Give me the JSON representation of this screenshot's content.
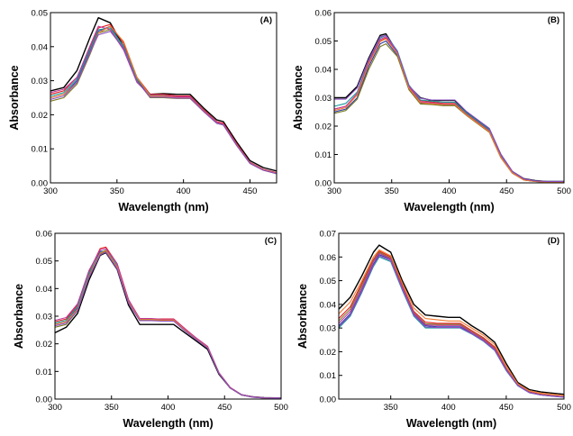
{
  "figure": {
    "palette": [
      "#000000",
      "#e41a1c",
      "#2b3da8",
      "#1c9c9c",
      "#7a7a22",
      "#c2379c",
      "#f07a2e",
      "#8a4fc0",
      "#9ac840",
      "#3d8c3d"
    ]
  },
  "chart_data": [
    {
      "type": "line",
      "panel_label": "(A)",
      "xlabel": "Wavelength (nm)",
      "ylabel": "Absorbance",
      "xlim": [
        300,
        470
      ],
      "ylim": [
        0,
        0.05
      ],
      "xticks": [
        "300",
        "350",
        "400",
        "450"
      ],
      "yticks": [
        "0.00",
        "0.01",
        "0.02",
        "0.03",
        "0.04",
        "0.05"
      ],
      "x": [
        300,
        310,
        320,
        330,
        336,
        345,
        355,
        365,
        375,
        385,
        395,
        405,
        415,
        425,
        430,
        440,
        450,
        460,
        470
      ],
      "series": [
        {
          "values": [
            0.027,
            0.028,
            0.033,
            0.043,
            0.0485,
            0.047,
            0.04,
            0.03,
            0.026,
            0.0262,
            0.026,
            0.026,
            0.022,
            0.0185,
            0.018,
            0.012,
            0.0065,
            0.0045,
            0.0035
          ]
        },
        {
          "values": [
            0.026,
            0.027,
            0.031,
            0.04,
            0.0455,
            0.0465,
            0.041,
            0.031,
            0.026,
            0.026,
            0.0255,
            0.0255,
            0.0215,
            0.018,
            0.0175,
            0.0115,
            0.006,
            0.004,
            0.003
          ]
        },
        {
          "values": [
            0.025,
            0.026,
            0.03,
            0.039,
            0.0445,
            0.046,
            0.04,
            0.03,
            0.0255,
            0.0255,
            0.025,
            0.025,
            0.021,
            0.0175,
            0.017,
            0.011,
            0.0058,
            0.0038,
            0.0028
          ]
        },
        {
          "values": [
            0.0255,
            0.0265,
            0.0305,
            0.0395,
            0.045,
            0.0455,
            0.04,
            0.0305,
            0.0258,
            0.0258,
            0.0252,
            0.0252,
            0.0212,
            0.0178,
            0.0172,
            0.0112,
            0.0059,
            0.0039,
            0.0029
          ]
        },
        {
          "values": [
            0.024,
            0.025,
            0.029,
            0.038,
            0.044,
            0.045,
            0.0395,
            0.03,
            0.025,
            0.025,
            0.0248,
            0.0248,
            0.021,
            0.0175,
            0.017,
            0.011,
            0.0057,
            0.0037,
            0.0027
          ]
        },
        {
          "values": [
            0.0265,
            0.0275,
            0.031,
            0.0405,
            0.046,
            0.045,
            0.039,
            0.0295,
            0.0257,
            0.0257,
            0.0253,
            0.0253,
            0.0213,
            0.0178,
            0.0173,
            0.0113,
            0.0059,
            0.0039,
            0.0029
          ]
        },
        {
          "values": [
            0.025,
            0.026,
            0.0295,
            0.0385,
            0.044,
            0.046,
            0.0415,
            0.031,
            0.0255,
            0.0255,
            0.025,
            0.025,
            0.0211,
            0.0176,
            0.0171,
            0.0111,
            0.0058,
            0.0038,
            0.0028
          ]
        },
        {
          "values": [
            0.0245,
            0.0255,
            0.0295,
            0.0385,
            0.0435,
            0.0445,
            0.0395,
            0.0298,
            0.0252,
            0.0252,
            0.0249,
            0.0249,
            0.021,
            0.0175,
            0.017,
            0.011,
            0.0057,
            0.0037,
            0.0027
          ]
        }
      ]
    },
    {
      "type": "line",
      "panel_label": "(B)",
      "xlabel": "Wavelength (nm)",
      "ylabel": "Absorbance",
      "xlim": [
        300,
        500
      ],
      "ylim": [
        0,
        0.06
      ],
      "xticks": [
        "300",
        "350",
        "400",
        "450",
        "500"
      ],
      "yticks": [
        "0.00",
        "0.01",
        "0.02",
        "0.03",
        "0.04",
        "0.05",
        "0.06"
      ],
      "x": [
        300,
        310,
        320,
        330,
        340,
        345,
        355,
        365,
        375,
        385,
        395,
        405,
        415,
        425,
        435,
        445,
        455,
        465,
        475,
        485,
        500
      ],
      "series": [
        {
          "values": [
            0.03,
            0.03,
            0.034,
            0.044,
            0.052,
            0.0525,
            0.046,
            0.034,
            0.03,
            0.029,
            0.029,
            0.029,
            0.025,
            0.022,
            0.019,
            0.01,
            0.004,
            0.0015,
            0.0008,
            0.0005,
            0.0005
          ]
        },
        {
          "values": [
            0.026,
            0.027,
            0.031,
            0.042,
            0.05,
            0.051,
            0.046,
            0.034,
            0.029,
            0.0285,
            0.028,
            0.028,
            0.0245,
            0.0215,
            0.0185,
            0.0095,
            0.0038,
            0.0012,
            0.0006,
            0.0004,
            0.0004
          ]
        },
        {
          "values": [
            0.025,
            0.026,
            0.03,
            0.041,
            0.049,
            0.05,
            0.045,
            0.033,
            0.028,
            0.028,
            0.0275,
            0.0275,
            0.024,
            0.021,
            0.018,
            0.009,
            0.0035,
            0.001,
            0.0005,
            0.0003,
            0.0003
          ]
        },
        {
          "values": [
            0.027,
            0.028,
            0.032,
            0.043,
            0.051,
            0.052,
            0.0465,
            0.0345,
            0.0292,
            0.0288,
            0.0284,
            0.0284,
            0.0247,
            0.0217,
            0.0187,
            0.0096,
            0.0039,
            0.0013,
            0.0007,
            0.0005,
            0.0005
          ]
        },
        {
          "values": [
            0.0245,
            0.0255,
            0.0295,
            0.04,
            0.048,
            0.049,
            0.0445,
            0.0328,
            0.0278,
            0.0276,
            0.0272,
            0.0272,
            0.0238,
            0.0208,
            0.0178,
            0.0089,
            0.0034,
            0.001,
            0.0005,
            0.0003,
            0.0003
          ]
        },
        {
          "values": [
            0.026,
            0.027,
            0.0315,
            0.0425,
            0.0505,
            0.0515,
            0.0458,
            0.0338,
            0.0286,
            0.0282,
            0.0278,
            0.0278,
            0.0242,
            0.0212,
            0.0182,
            0.0092,
            0.0036,
            0.0011,
            0.0006,
            0.0004,
            0.0004
          ]
        },
        {
          "values": [
            0.0255,
            0.0265,
            0.031,
            0.042,
            0.0498,
            0.0508,
            0.0455,
            0.0334,
            0.0283,
            0.0279,
            0.0276,
            0.0276,
            0.024,
            0.021,
            0.018,
            0.009,
            0.0035,
            0.001,
            0.0005,
            0.0003,
            0.0003
          ]
        },
        {
          "values": [
            0.0295,
            0.0295,
            0.0335,
            0.0435,
            0.0515,
            0.052,
            0.0462,
            0.0342,
            0.0298,
            0.0292,
            0.0292,
            0.0292,
            0.0252,
            0.0222,
            0.0192,
            0.0101,
            0.0041,
            0.0014,
            0.0007,
            0.0005,
            0.0005
          ]
        }
      ]
    },
    {
      "type": "line",
      "panel_label": "(C)",
      "xlabel": "Wavelength (nm)",
      "ylabel": "Absorbance",
      "xlim": [
        300,
        500
      ],
      "ylim": [
        0,
        0.06
      ],
      "xticks": [
        "300",
        "350",
        "400",
        "450",
        "500"
      ],
      "yticks": [
        "0.00",
        "0.01",
        "0.02",
        "0.03",
        "0.04",
        "0.05",
        "0.06"
      ],
      "x": [
        300,
        310,
        320,
        330,
        340,
        345,
        355,
        365,
        375,
        385,
        395,
        405,
        415,
        425,
        435,
        445,
        455,
        465,
        475,
        485,
        500
      ],
      "series": [
        {
          "values": [
            0.024,
            0.026,
            0.031,
            0.043,
            0.052,
            0.053,
            0.047,
            0.034,
            0.027,
            0.027,
            0.027,
            0.027,
            0.024,
            0.021,
            0.018,
            0.009,
            0.004,
            0.0015,
            0.0008,
            0.0005,
            0.0004
          ]
        },
        {
          "values": [
            0.028,
            0.029,
            0.034,
            0.046,
            0.0545,
            0.055,
            0.049,
            0.036,
            0.029,
            0.029,
            0.029,
            0.029,
            0.0255,
            0.022,
            0.019,
            0.0095,
            0.0042,
            0.0016,
            0.0008,
            0.0005,
            0.0004
          ]
        },
        {
          "values": [
            0.027,
            0.028,
            0.033,
            0.045,
            0.0535,
            0.0535,
            0.048,
            0.0355,
            0.0288,
            0.0288,
            0.0285,
            0.0285,
            0.025,
            0.0218,
            0.0188,
            0.0094,
            0.0041,
            0.0015,
            0.0008,
            0.0005,
            0.0004
          ]
        },
        {
          "values": [
            0.0275,
            0.0285,
            0.0335,
            0.0455,
            0.053,
            0.054,
            0.0485,
            0.0358,
            0.0291,
            0.029,
            0.0287,
            0.0287,
            0.0252,
            0.0219,
            0.0189,
            0.0095,
            0.0041,
            0.0016,
            0.0008,
            0.0005,
            0.0004
          ]
        },
        {
          "values": [
            0.026,
            0.027,
            0.032,
            0.044,
            0.0525,
            0.0535,
            0.0475,
            0.035,
            0.0285,
            0.0285,
            0.0283,
            0.0283,
            0.0248,
            0.0216,
            0.0186,
            0.0093,
            0.004,
            0.0015,
            0.0007,
            0.0004,
            0.0003
          ]
        },
        {
          "values": [
            0.0285,
            0.0295,
            0.0345,
            0.0465,
            0.054,
            0.0545,
            0.049,
            0.036,
            0.0292,
            0.0292,
            0.0289,
            0.0289,
            0.0254,
            0.0221,
            0.0191,
            0.0096,
            0.0042,
            0.0016,
            0.0008,
            0.0005,
            0.0004
          ]
        },
        {
          "values": [
            0.027,
            0.028,
            0.0325,
            0.0445,
            0.0528,
            0.0538,
            0.0478,
            0.0352,
            0.0288,
            0.0288,
            0.0286,
            0.0286,
            0.025,
            0.0217,
            0.0187,
            0.0094,
            0.004,
            0.0015,
            0.0007,
            0.0004,
            0.0003
          ]
        },
        {
          "values": [
            0.0265,
            0.0275,
            0.032,
            0.044,
            0.0522,
            0.0532,
            0.0472,
            0.0348,
            0.0284,
            0.0284,
            0.0282,
            0.0282,
            0.0247,
            0.0215,
            0.0185,
            0.0093,
            0.004,
            0.0015,
            0.0007,
            0.0004,
            0.0003
          ]
        }
      ]
    },
    {
      "type": "line",
      "panel_label": "(D)",
      "xlabel": "Wavelength (nm)",
      "ylabel": "Absorbance",
      "xlim": [
        305,
        500
      ],
      "ylim": [
        0,
        0.07
      ],
      "xticks": [
        "350",
        "400",
        "450",
        "500"
      ],
      "yticks": [
        "0.00",
        "0.01",
        "0.02",
        "0.03",
        "0.04",
        "0.05",
        "0.06",
        "0.07"
      ],
      "x": [
        305,
        315,
        325,
        335,
        340,
        350,
        360,
        370,
        380,
        390,
        400,
        410,
        420,
        430,
        440,
        450,
        460,
        470,
        480,
        490,
        500
      ],
      "series": [
        {
          "values": [
            0.038,
            0.043,
            0.052,
            0.062,
            0.065,
            0.062,
            0.05,
            0.04,
            0.0355,
            0.035,
            0.0345,
            0.0345,
            0.031,
            0.028,
            0.024,
            0.015,
            0.007,
            0.004,
            0.003,
            0.0025,
            0.002
          ]
        },
        {
          "values": [
            0.034,
            0.039,
            0.049,
            0.059,
            0.0625,
            0.06,
            0.048,
            0.037,
            0.0325,
            0.032,
            0.032,
            0.032,
            0.029,
            0.026,
            0.022,
            0.013,
            0.006,
            0.003,
            0.002,
            0.0015,
            0.001
          ]
        },
        {
          "values": [
            0.031,
            0.036,
            0.046,
            0.057,
            0.061,
            0.059,
            0.047,
            0.036,
            0.031,
            0.0305,
            0.0305,
            0.0305,
            0.028,
            0.025,
            0.021,
            0.0125,
            0.0058,
            0.0028,
            0.0018,
            0.0013,
            0.0009
          ]
        },
        {
          "values": [
            0.03,
            0.035,
            0.045,
            0.056,
            0.06,
            0.058,
            0.046,
            0.035,
            0.03,
            0.03,
            0.03,
            0.03,
            0.0275,
            0.0245,
            0.0205,
            0.012,
            0.0056,
            0.0027,
            0.0017,
            0.0012,
            0.0008
          ]
        },
        {
          "values": [
            0.033,
            0.038,
            0.048,
            0.0585,
            0.062,
            0.0595,
            0.0475,
            0.0365,
            0.0318,
            0.0315,
            0.0315,
            0.0315,
            0.0285,
            0.0255,
            0.0215,
            0.0128,
            0.006,
            0.0029,
            0.0019,
            0.0014,
            0.0009
          ]
        },
        {
          "values": [
            0.032,
            0.037,
            0.047,
            0.058,
            0.0615,
            0.0592,
            0.0472,
            0.0362,
            0.0314,
            0.0311,
            0.0311,
            0.0311,
            0.0282,
            0.0252,
            0.0212,
            0.0126,
            0.0059,
            0.0028,
            0.0018,
            0.0013,
            0.0009
          ]
        },
        {
          "values": [
            0.036,
            0.041,
            0.05,
            0.06,
            0.063,
            0.0605,
            0.049,
            0.0385,
            0.034,
            0.0335,
            0.033,
            0.033,
            0.03,
            0.027,
            0.023,
            0.014,
            0.0065,
            0.0035,
            0.0025,
            0.002,
            0.0015
          ]
        },
        {
          "values": [
            0.0305,
            0.0355,
            0.0455,
            0.0565,
            0.0605,
            0.0585,
            0.0465,
            0.0355,
            0.0305,
            0.0302,
            0.0302,
            0.0302,
            0.0277,
            0.0247,
            0.0207,
            0.0122,
            0.0057,
            0.0027,
            0.0017,
            0.0012,
            0.0008
          ]
        }
      ]
    }
  ]
}
